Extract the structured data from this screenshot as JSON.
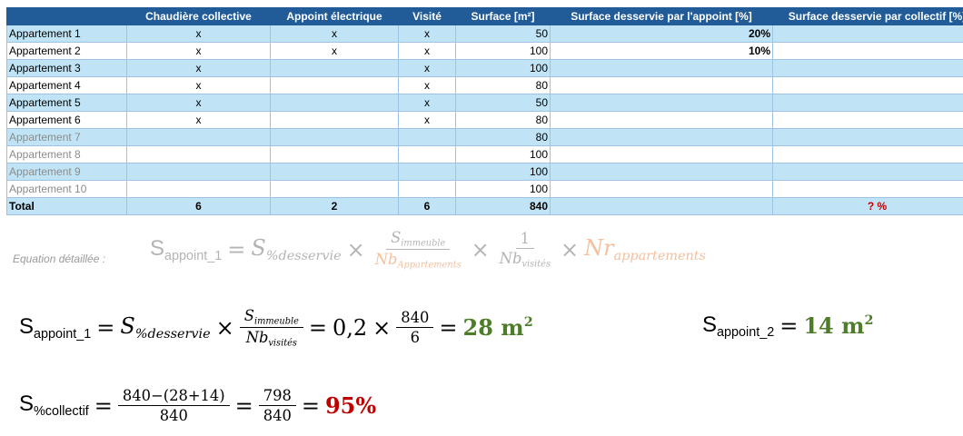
{
  "table": {
    "header": [
      null,
      "Chaudière collective",
      "Appoint électrique",
      "Visité",
      "Surface [m²]",
      "Surface desservie par l'appoint [%]",
      "Surface desservie par collectif [%]"
    ],
    "rows": [
      [
        "Appartement 1",
        "x",
        "x",
        "x",
        50,
        "20%",
        null
      ],
      [
        "Appartement 2",
        "x",
        "x",
        "x",
        100,
        "10%",
        null
      ],
      [
        "Appartement 3",
        "x",
        null,
        "x",
        100,
        null,
        null
      ],
      [
        "Appartement 4",
        "x",
        null,
        "x",
        80,
        null,
        null
      ],
      [
        "Appartement 5",
        "x",
        null,
        "x",
        50,
        null,
        null
      ],
      [
        "Appartement 6",
        "x",
        null,
        "x",
        80,
        null,
        null
      ],
      [
        "Appartement 7",
        null,
        null,
        null,
        80,
        null,
        null
      ],
      [
        "Appartement 8",
        null,
        null,
        null,
        100,
        null,
        null
      ],
      [
        "Appartement 9",
        null,
        null,
        null,
        100,
        null,
        null
      ],
      [
        "Appartement 10",
        null,
        null,
        null,
        100,
        null,
        null
      ]
    ],
    "total": [
      "Total",
      6,
      2,
      6,
      840,
      null,
      "? %"
    ]
  },
  "equations": [
    {
      "label": "Equation détaillée :",
      "color": "#b4b4b4",
      "parts": [
        {
          "text": "S",
          "sub": "appoint_1"
        },
        {
          "text": "="
        },
        {
          "text": "S",
          "sub": "%desservie",
          "italic": true
        },
        {
          "text": "×"
        },
        {
          "num": [
            {
              "text": "S",
              "sub": "immeuble",
              "italic": true
            }
          ],
          "den": [
            {
              "text": "Nb",
              "sub": "Appartements",
              "italic": true,
              "color": "#f4c09e"
            }
          ]
        },
        {
          "text": "×"
        },
        {
          "num": [
            {
              "text": "1"
            }
          ],
          "den": [
            {
              "text": "Nb",
              "sub": "visités",
              "italic": true
            }
          ]
        },
        {
          "text": "×"
        },
        {
          "text": "Nr",
          "sub": "appartements",
          "italic": true,
          "color": "#f4c09e"
        }
      ]
    },
    {
      "color": "#000000",
      "parts": [
        {
          "text": "S",
          "sub": "appoint_1"
        },
        {
          "text": "="
        },
        {
          "text": "S",
          "sub": "%desservie",
          "italic": true
        },
        {
          "text": "×"
        },
        {
          "num": [
            {
              "text": "S",
              "sub": "immeuble",
              "italic": true
            }
          ],
          "den": [
            {
              "text": "Nb",
              "sub": "visités",
              "italic": true
            }
          ]
        },
        {
          "text": "="
        },
        {
          "text": "0,2"
        },
        {
          "text": "×"
        },
        {
          "num": [
            {
              "text": "840"
            }
          ],
          "den": [
            {
              "text": "6"
            }
          ]
        },
        {
          "text": "="
        },
        {
          "text": "28 m",
          "sup": "2",
          "bold": true,
          "color": "#4e7d2a"
        }
      ]
    },
    {
      "color": "#000000",
      "parts": [
        {
          "text": "S",
          "sub": "appoint_2"
        },
        {
          "text": "="
        },
        {
          "text": "14 m",
          "sup": "2",
          "bold": true,
          "color": "#4e7d2a"
        }
      ]
    },
    {
      "color": "#000000",
      "parts": [
        {
          "text": "S",
          "sub": "%collectif"
        },
        {
          "text": "="
        },
        {
          "num": [
            {
              "text": "840−(28+14)"
            }
          ],
          "den": [
            {
              "text": "840"
            }
          ]
        },
        {
          "text": "="
        },
        {
          "num": [
            {
              "text": "798"
            }
          ],
          "den": [
            {
              "text": "840"
            }
          ]
        },
        {
          "text": "="
        },
        {
          "text": "95%",
          "bold": true,
          "color": "#c00000"
        }
      ]
    }
  ]
}
